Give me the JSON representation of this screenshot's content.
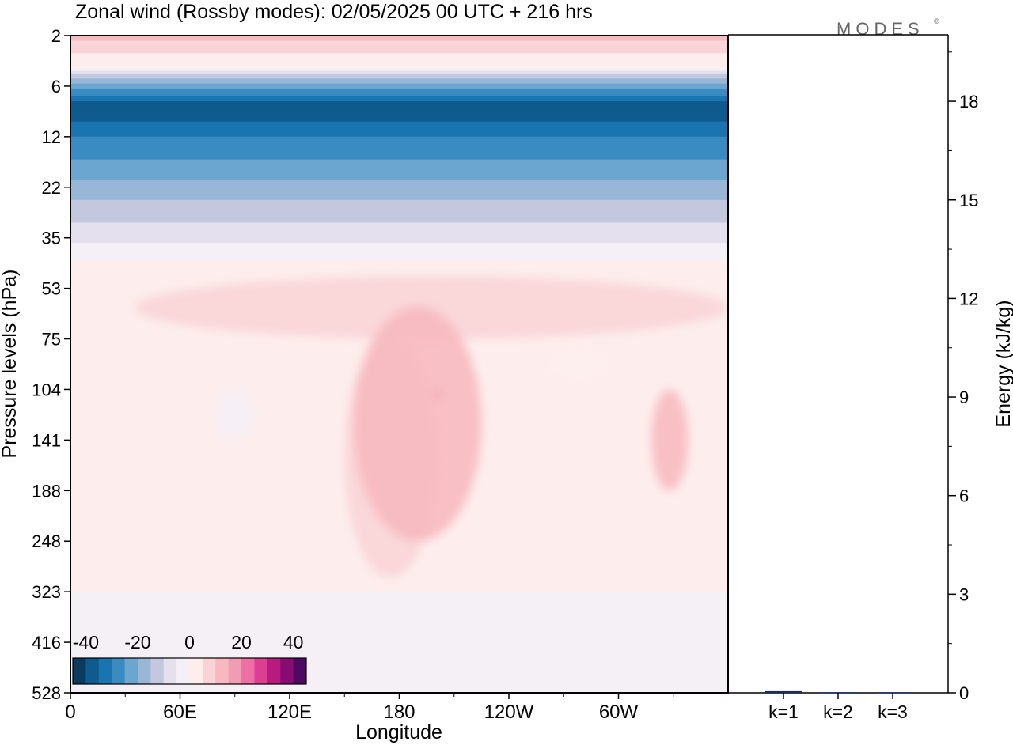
{
  "title": "Zonal wind (Rossby modes):  02/05/2025  00 UTC  + 216 hrs",
  "logo": "MODES",
  "logo_mark": "©",
  "chart_data": [
    {
      "type": "heatmap",
      "title": "Zonal wind (Rossby modes):  02/05/2025  00 UTC  + 216 hrs",
      "xlabel": "Longitude",
      "ylabel": "Pressure levels (hPa)",
      "x_ticks": [
        "0",
        "60E",
        "120E",
        "180",
        "120W",
        "60W"
      ],
      "x_tick_degrees": [
        0,
        60,
        120,
        180,
        240,
        300
      ],
      "xlim": [
        0,
        360
      ],
      "y_ticks": [
        "2",
        "6",
        "12",
        "22",
        "35",
        "53",
        "75",
        "104",
        "141",
        "188",
        "248",
        "323",
        "416",
        "528"
      ],
      "y_scale": "pressure levels, top = 2 hPa, bottom = 528 hPa",
      "colorbar": {
        "tick_labels": [
          "-40",
          "-20",
          "0",
          "20",
          "40"
        ],
        "range": [
          -45,
          45
        ],
        "step": 5,
        "colors": [
          "#0b3a5e",
          "#0f5a8f",
          "#1a74b0",
          "#3a8bc2",
          "#6aa6cf",
          "#98b6d6",
          "#c4c8df",
          "#e4e0ee",
          "#f5f0f6",
          "#fdeeed",
          "#f9d4d6",
          "#f7b9bf",
          "#f19cb5",
          "#ec6fa6",
          "#dc3f92",
          "#b81a7d",
          "#8a0c72",
          "#4e0a63"
        ]
      },
      "zonal_bands": [
        {
          "pressure_hPa": 2,
          "wind": 12
        },
        {
          "pressure_hPa": 4,
          "wind": 0
        },
        {
          "pressure_hPa": 5,
          "wind": -15
        },
        {
          "pressure_hPa": 8,
          "wind": -40
        },
        {
          "pressure_hPa": 12,
          "wind": -30
        },
        {
          "pressure_hPa": 16,
          "wind": -25
        },
        {
          "pressure_hPa": 22,
          "wind": -18
        },
        {
          "pressure_hPa": 28,
          "wind": -12
        },
        {
          "pressure_hPa": 35,
          "wind": -6
        },
        {
          "pressure_hPa": 45,
          "wind": 2
        },
        {
          "pressure_hPa": 104,
          "wind": 2
        },
        {
          "pressure_hPa": 528,
          "wind": -1
        }
      ],
      "features": [
        {
          "lon_range": [
            35,
            360
          ],
          "p_range": [
            48,
            75
          ],
          "wind": 7
        },
        {
          "lon_range": [
            150,
            200
          ],
          "p_range": [
            75,
            300
          ],
          "wind": 8
        },
        {
          "lon_range": [
            155,
            225
          ],
          "p_range": [
            60,
            248
          ],
          "wind": 11
        },
        {
          "lon_range": [
            255,
            300
          ],
          "p_range": [
            75,
            104
          ],
          "wind": 2
        },
        {
          "lon_range": [
            80,
            100
          ],
          "p_range": [
            104,
            141
          ],
          "wind": -4
        },
        {
          "lon_range": [
            318,
            338
          ],
          "p_range": [
            104,
            188
          ],
          "wind": 12
        },
        {
          "lon_range": [
            200,
            202
          ],
          "p_range": [
            104,
            110
          ],
          "wind": 18
        }
      ]
    },
    {
      "type": "bar",
      "categories": [
        "k=1",
        "k=2",
        "k=3"
      ],
      "values": [
        0.05,
        0.02,
        0.02
      ],
      "ylabel": "Energy (kJ/kg)",
      "y_ticks": [
        "0",
        "3",
        "6",
        "9",
        "12",
        "15",
        "18"
      ],
      "ylim": [
        0,
        20
      ]
    }
  ]
}
